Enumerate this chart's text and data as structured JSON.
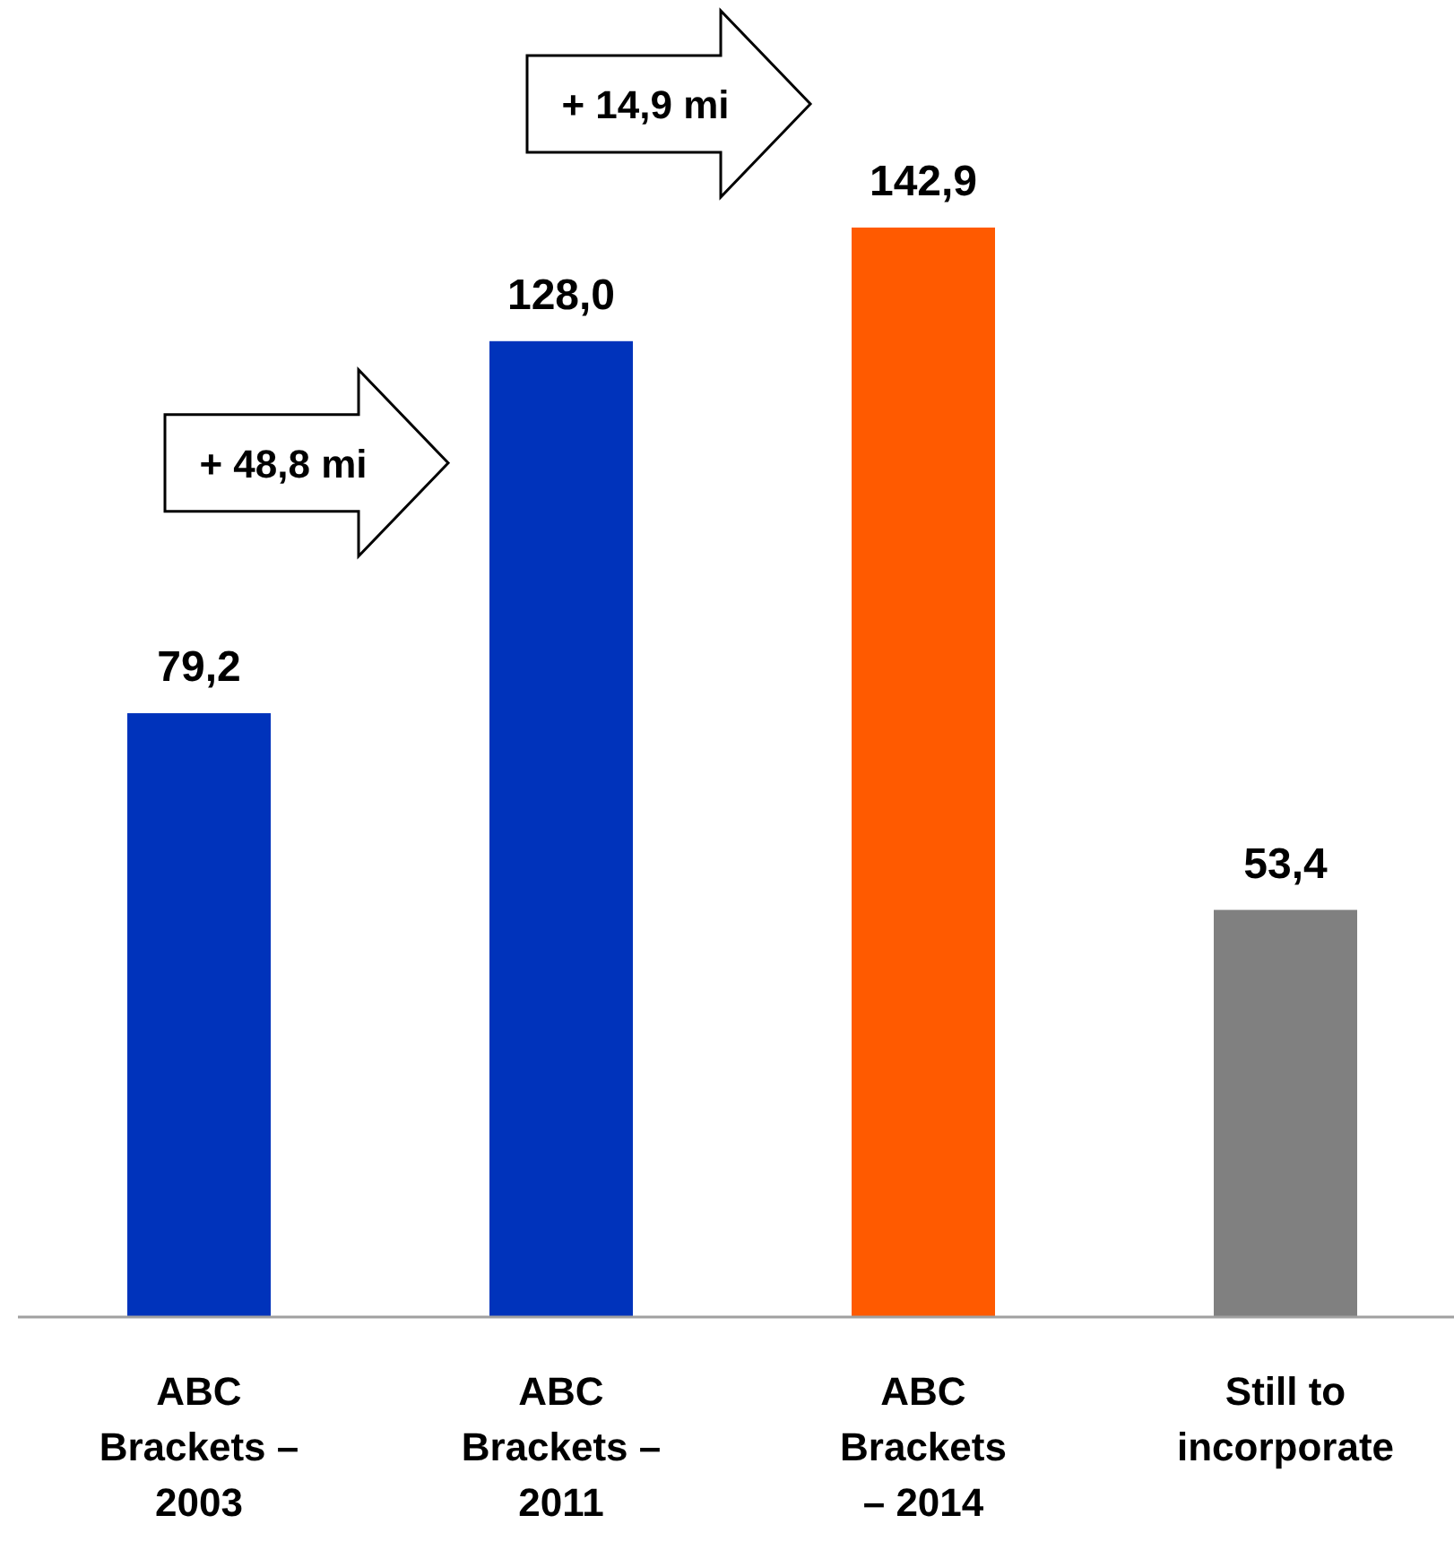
{
  "chart_data": {
    "type": "bar",
    "categories": [
      "ABC\nBrackets –\n2003",
      "ABC\nBrackets –\n2011",
      "ABC\nBrackets\n– 2014",
      "Still to\nincorporate"
    ],
    "values": [
      79.2,
      128.0,
      142.9,
      53.4
    ],
    "value_labels": [
      "79,2",
      "128,0",
      "142,9",
      "53,4"
    ],
    "colors": [
      "#0033bb",
      "#0033bb",
      "#ff5a00",
      "#808080"
    ],
    "annotations": [
      "+ 48,8 mi",
      "+ 14,9 mi"
    ]
  }
}
